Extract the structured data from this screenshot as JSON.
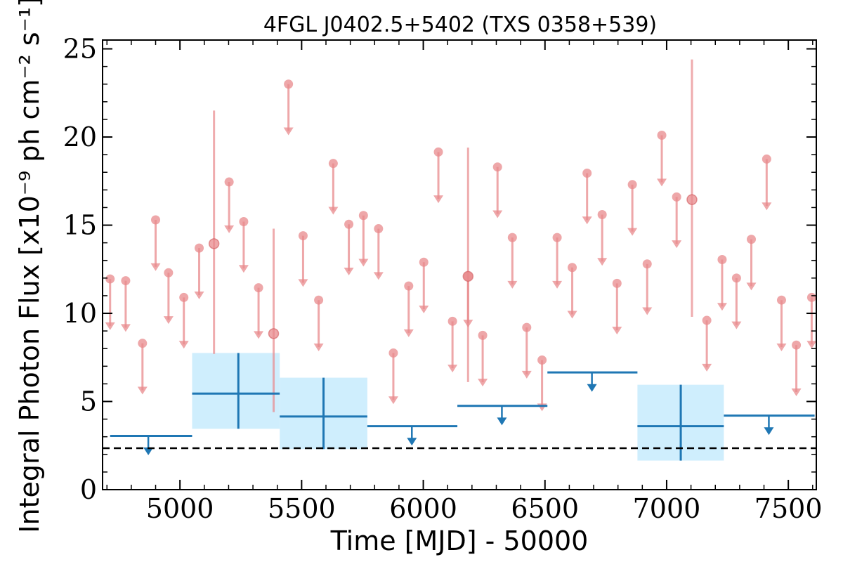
{
  "chart_data": {
    "type": "scatter",
    "title": "4FGL J0402.5+5402 (TXS 0358+539)",
    "xlabel": "Time [MJD] - 50000",
    "ylabel": "Integral Photon Flux [x10⁻⁹ ph cm⁻² s⁻¹]",
    "xlim": [
      4682,
      7615
    ],
    "ylim": [
      0,
      25.5
    ],
    "xticks": [
      5000,
      5500,
      6000,
      6500,
      7000,
      7500
    ],
    "yticks": [
      0,
      5,
      10,
      15,
      20,
      25
    ],
    "baseline": 2.35,
    "colors": {
      "fine_bins": "#e8898c",
      "coarse_bins": "#1f77b4",
      "coarse_box": "#cfeefd",
      "baseline": "#000000"
    },
    "fine_upper_limits": [
      [
        4713,
        11.95
      ],
      [
        4777,
        11.85
      ],
      [
        4846,
        8.3
      ],
      [
        4900,
        15.3
      ],
      [
        4953,
        12.3
      ],
      [
        5016,
        10.9
      ],
      [
        5079,
        13.7
      ],
      [
        5202,
        17.45
      ],
      [
        5262,
        15.2
      ],
      [
        5323,
        11.45
      ],
      [
        5446,
        23.0
      ],
      [
        5506,
        14.4
      ],
      [
        5570,
        10.75
      ],
      [
        5630,
        18.5
      ],
      [
        5694,
        15.05
      ],
      [
        5754,
        15.55
      ],
      [
        5816,
        14.8
      ],
      [
        5877,
        7.75
      ],
      [
        5940,
        11.55
      ],
      [
        6002,
        12.9
      ],
      [
        6062,
        19.15
      ],
      [
        6120,
        9.55
      ],
      [
        6184,
        12.1
      ],
      [
        6244,
        8.75
      ],
      [
        6305,
        18.3
      ],
      [
        6366,
        14.3
      ],
      [
        6425,
        9.2
      ],
      [
        6488,
        7.35
      ],
      [
        6550,
        14.3
      ],
      [
        6612,
        12.6
      ],
      [
        6673,
        17.95
      ],
      [
        6735,
        15.6
      ],
      [
        6796,
        11.7
      ],
      [
        6859,
        17.3
      ],
      [
        6920,
        12.8
      ],
      [
        6980,
        20.1
      ],
      [
        7041,
        16.6
      ],
      [
        7165,
        9.6
      ],
      [
        7228,
        13.05
      ],
      [
        7287,
        12.0
      ],
      [
        7348,
        14.2
      ],
      [
        7411,
        18.75
      ],
      [
        7472,
        10.75
      ],
      [
        7533,
        8.2
      ],
      [
        7596,
        10.9
      ]
    ],
    "fine_detections": [
      {
        "x": 5140,
        "y": 13.95,
        "yerr": [
          7.7,
          21.5
        ]
      },
      {
        "x": 5385,
        "y": 8.85,
        "yerr": [
          4.4,
          14.8
        ]
      },
      {
        "x": 6184,
        "y": 12.1,
        "yerr": [
          6.1,
          19.4
        ]
      },
      {
        "x": 7104,
        "y": 16.45,
        "yerr": [
          9.8,
          24.4
        ]
      }
    ],
    "coarse_upper_limits": [
      {
        "x0": 4713,
        "x1": 5050,
        "y": 3.05,
        "xc": 4870
      },
      {
        "x0": 5770,
        "x1": 6140,
        "y": 3.6,
        "xc": 5953
      },
      {
        "x0": 6140,
        "x1": 6510,
        "y": 4.75,
        "xc": 6323
      },
      {
        "x0": 6510,
        "x1": 6880,
        "y": 6.65,
        "xc": 6693
      },
      {
        "x0": 7235,
        "x1": 7608,
        "y": 4.2,
        "xc": 7420
      }
    ],
    "coarse_detections": [
      {
        "x0": 5050,
        "x1": 5410,
        "xc": 5240,
        "y": 5.45,
        "ylo": 3.45,
        "yhi": 7.75
      },
      {
        "x0": 5410,
        "x1": 5770,
        "xc": 5590,
        "y": 4.15,
        "ylo": 2.3,
        "yhi": 6.35
      },
      {
        "x0": 6880,
        "x1": 7235,
        "xc": 7058,
        "y": 3.6,
        "ylo": 1.65,
        "yhi": 5.95
      }
    ]
  }
}
